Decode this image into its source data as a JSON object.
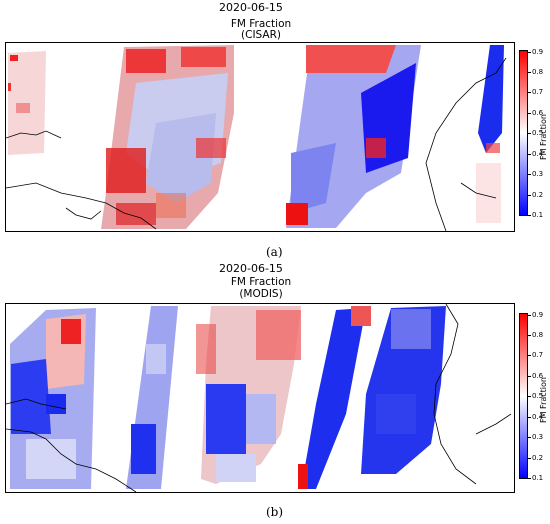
{
  "panel_a": {
    "date": "2020-06-15",
    "title_line1": "FM Fraction",
    "title_line2": "(CISAR)",
    "caption": "(a)",
    "colorbar_label": "FM Fraction",
    "colorbar_ticks": [
      "0.9",
      "0.8",
      "0.7",
      "0.6",
      "0.5",
      "0.4",
      "0.3",
      "0.2",
      "0.1"
    ]
  },
  "panel_b": {
    "date": "2020-06-15",
    "title_line1": "FM Fraction",
    "title_line2": "(MODIS)",
    "caption": "(b)",
    "colorbar_label": "FM Fraction",
    "colorbar_ticks": [
      "0.9",
      "0.8",
      "0.7",
      "0.6",
      "0.5",
      "0.4",
      "0.3",
      "0.2",
      "0.1"
    ]
  },
  "colormap": {
    "low": "#0000ff",
    "mid": "#ffffff",
    "high": "#ff0000",
    "range": [
      0.1,
      0.9
    ]
  }
}
